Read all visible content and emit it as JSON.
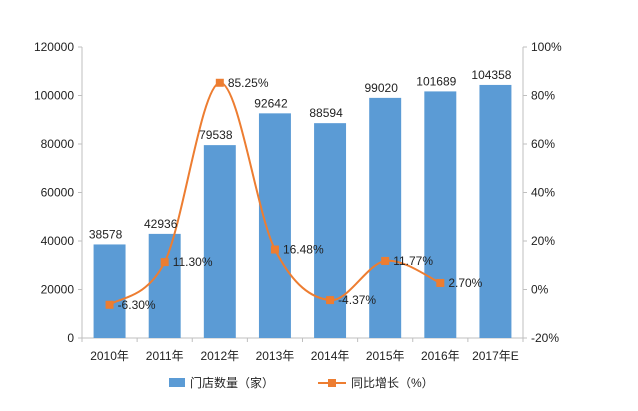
{
  "chart_data": {
    "type": "bar+line",
    "categories": [
      "2010年",
      "2011年",
      "2012年",
      "2013年",
      "2014年",
      "2015年",
      "2016年",
      "2017年E"
    ],
    "series": [
      {
        "name": "门店数量（家）",
        "type": "bar",
        "axis": "left",
        "values": [
          38578,
          42936,
          79538,
          92642,
          88594,
          99020,
          101689,
          104358
        ],
        "labels": [
          "38578",
          "42936",
          "79538",
          "92642",
          "88594",
          "99020",
          "101689",
          "104358"
        ]
      },
      {
        "name": "同比增长（%）",
        "type": "line",
        "axis": "right",
        "values": [
          -6.3,
          11.3,
          85.25,
          16.48,
          -4.37,
          11.77,
          2.7,
          null
        ],
        "labels": [
          "-6.30%",
          "11.30%",
          "85.25%",
          "16.48%",
          "-4.37%",
          "11.77%",
          "2.70%",
          null
        ]
      }
    ],
    "y_left": {
      "min": 0,
      "max": 120000,
      "ticks": [
        0,
        20000,
        40000,
        60000,
        80000,
        100000,
        120000
      ],
      "tick_labels": [
        "0",
        "20000",
        "40000",
        "60000",
        "80000",
        "100000",
        "120000"
      ]
    },
    "y_right": {
      "min": -20,
      "max": 100,
      "ticks": [
        -20,
        0,
        20,
        40,
        60,
        80,
        100
      ],
      "tick_labels": [
        "-20%",
        "0%",
        "20%",
        "40%",
        "60%",
        "80%",
        "100%"
      ]
    },
    "legend": {
      "position": "bottom",
      "items": [
        {
          "label": "门店数量（家）",
          "kind": "bar"
        },
        {
          "label": "同比增长（%）",
          "kind": "line"
        }
      ]
    },
    "grid": false,
    "colors": {
      "bar": "#5b9bd5",
      "line": "#ed7d31",
      "axis": "#bfbfbf",
      "text": "#222222"
    }
  }
}
